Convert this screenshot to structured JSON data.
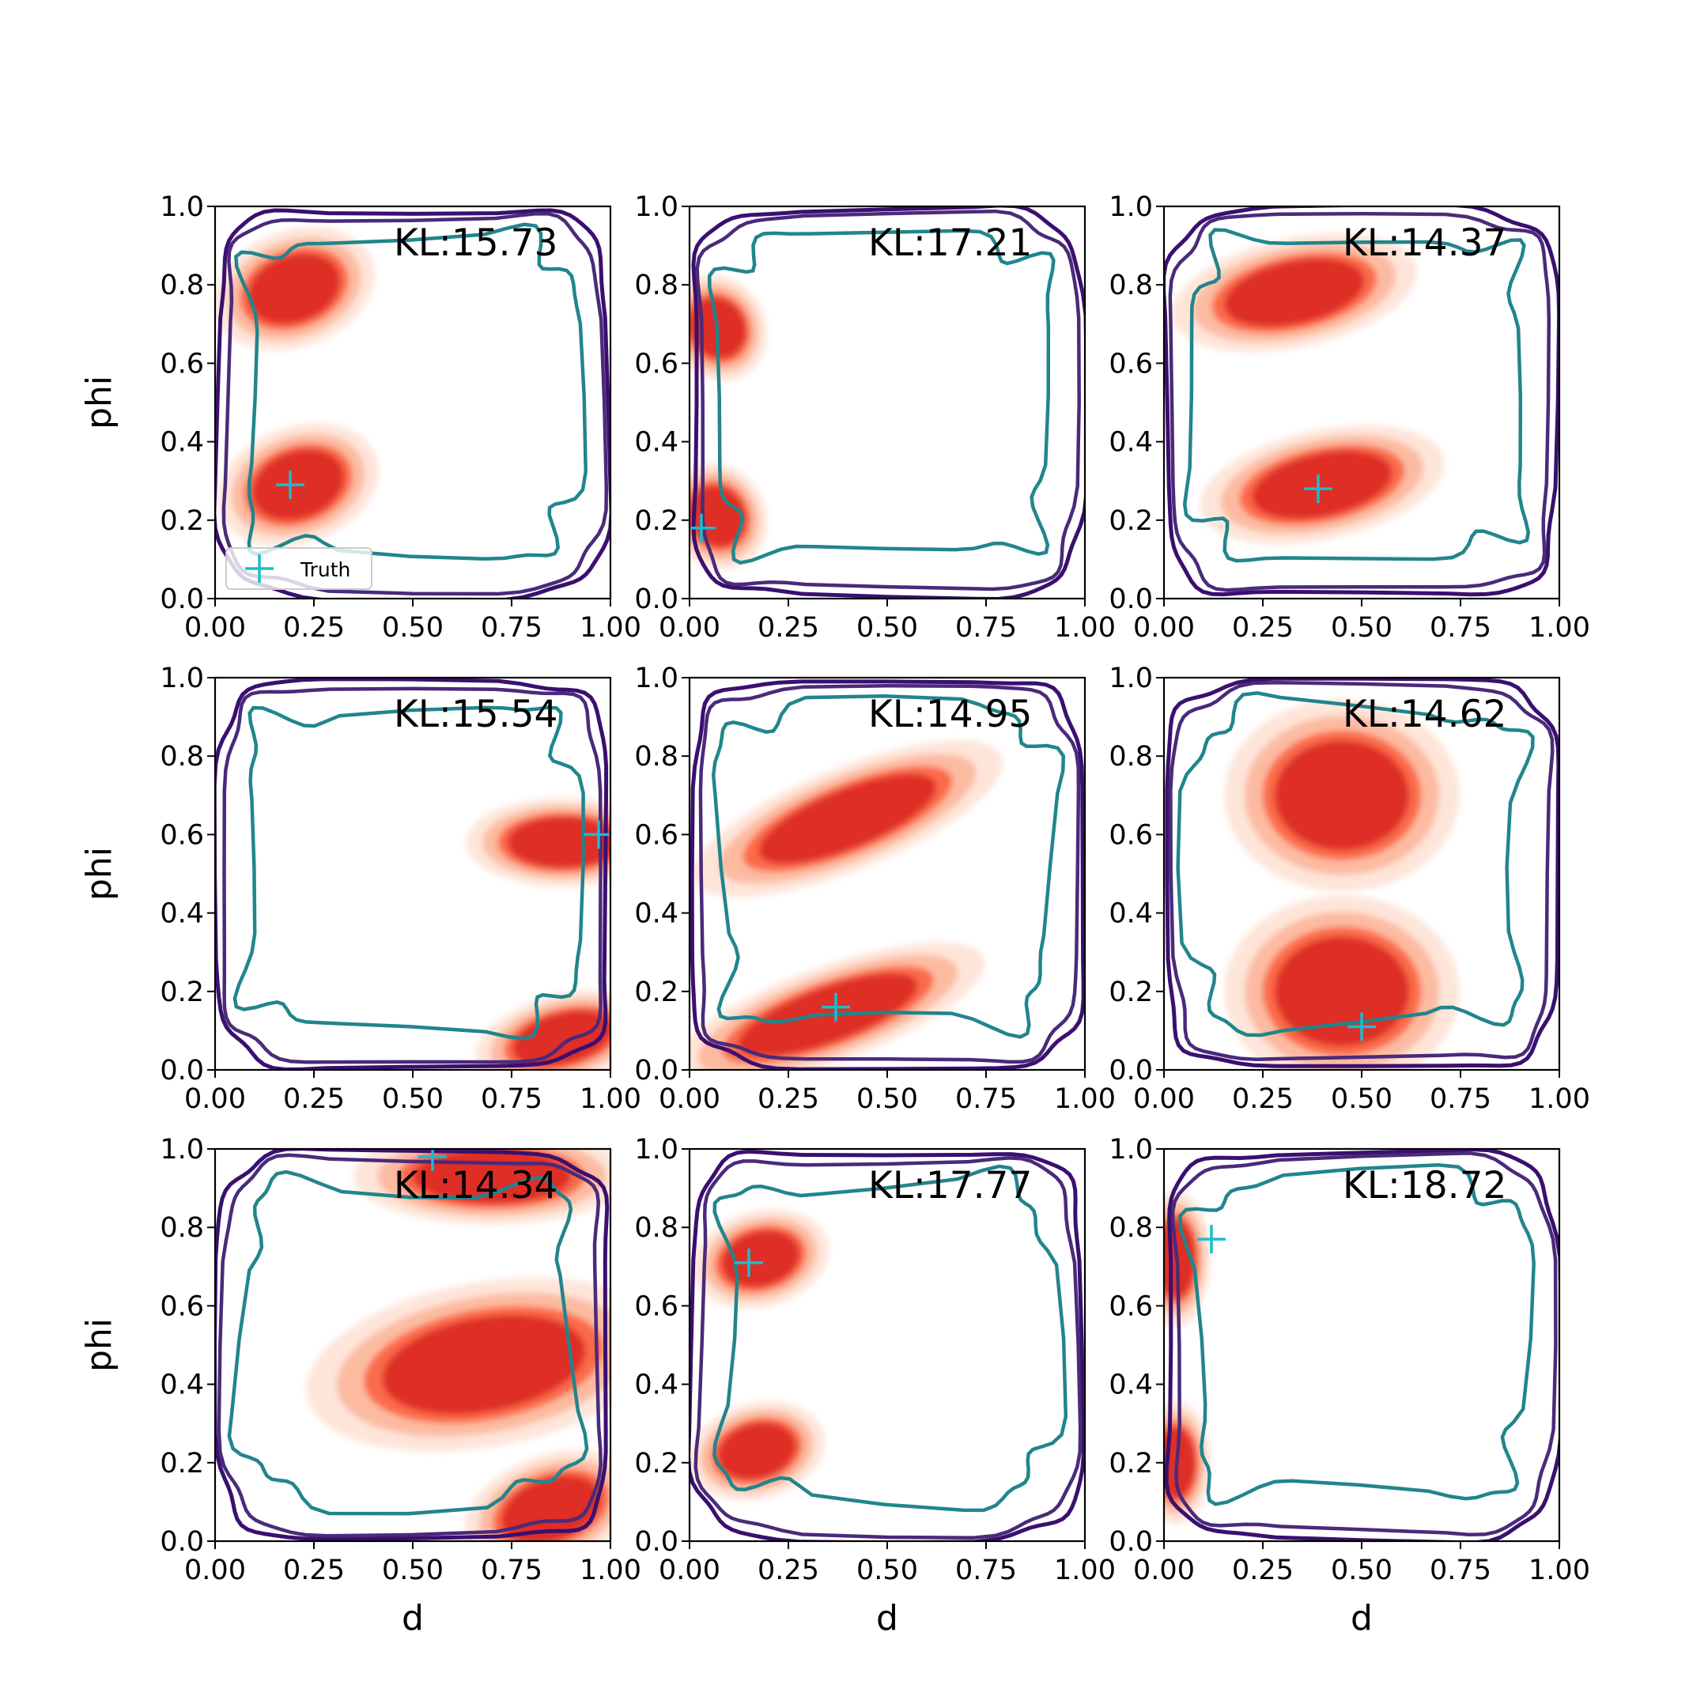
{
  "chart_data": {
    "type": "contour-grid",
    "grid": "3x3",
    "xlabel": "d",
    "ylabel": "phi",
    "xlim": [
      0,
      1
    ],
    "ylim": [
      0,
      1
    ],
    "xticks": [
      "0.00",
      "0.25",
      "0.50",
      "0.75",
      "1.00"
    ],
    "yticks": [
      "0.0",
      "0.2",
      "0.4",
      "0.6",
      "0.8",
      "1.0"
    ],
    "legend": {
      "label": "Truth",
      "placement": "lower-left",
      "panel": 0
    },
    "colors": {
      "truth": "#17becf",
      "filled": [
        "#fee5d9",
        "#fcbba1",
        "#fb6a4a",
        "#de2d26"
      ],
      "contour_outer": "#3b0f70",
      "contour_mid": "#4a2a7a",
      "contour_inner": "#21858c"
    },
    "panels": [
      {
        "kl": "KL:15.73",
        "truth": [
          0.19,
          0.29
        ],
        "blobs": [
          {
            "cx": 0.2,
            "cy": 0.79,
            "rx": 0.12,
            "ry": 0.085,
            "angle": 20
          },
          {
            "cx": 0.21,
            "cy": 0.29,
            "rx": 0.12,
            "ry": 0.085,
            "angle": 20
          }
        ]
      },
      {
        "kl": "KL:17.21",
        "truth": [
          0.03,
          0.18
        ],
        "blobs": [
          {
            "cx": 0.07,
            "cy": 0.69,
            "rx": 0.07,
            "ry": 0.08,
            "angle": 30
          },
          {
            "cx": 0.07,
            "cy": 0.21,
            "rx": 0.07,
            "ry": 0.08,
            "angle": 30
          }
        ]
      },
      {
        "kl": "KL:14.37",
        "truth": [
          0.39,
          0.28
        ],
        "blobs": [
          {
            "cx": 0.33,
            "cy": 0.78,
            "rx": 0.18,
            "ry": 0.08,
            "angle": 12
          },
          {
            "cx": 0.4,
            "cy": 0.29,
            "rx": 0.18,
            "ry": 0.08,
            "angle": 12
          }
        ]
      },
      {
        "kl": "KL:15.54",
        "truth": [
          0.97,
          0.6
        ],
        "blobs": [
          {
            "cx": 0.88,
            "cy": 0.58,
            "rx": 0.14,
            "ry": 0.065,
            "angle": 0
          },
          {
            "cx": 0.88,
            "cy": 0.08,
            "rx": 0.13,
            "ry": 0.065,
            "angle": 15
          }
        ]
      },
      {
        "kl": "KL:14.95",
        "truth": [
          0.37,
          0.16
        ],
        "blobs": [
          {
            "cx": 0.4,
            "cy": 0.64,
            "rx": 0.24,
            "ry": 0.075,
            "angle": 22
          },
          {
            "cx": 0.35,
            "cy": 0.14,
            "rx": 0.24,
            "ry": 0.07,
            "angle": 20
          }
        ]
      },
      {
        "kl": "KL:14.62",
        "truth": [
          0.5,
          0.11
        ],
        "blobs": [
          {
            "cx": 0.45,
            "cy": 0.7,
            "rx": 0.17,
            "ry": 0.14,
            "angle": 0
          },
          {
            "cx": 0.45,
            "cy": 0.2,
            "rx": 0.17,
            "ry": 0.14,
            "angle": 0
          }
        ]
      },
      {
        "kl": "KL:14.34",
        "truth": [
          0.55,
          0.98
        ],
        "blobs": [
          {
            "cx": 0.68,
            "cy": 0.45,
            "rx": 0.26,
            "ry": 0.12,
            "angle": 10
          },
          {
            "cx": 0.7,
            "cy": 0.93,
            "rx": 0.2,
            "ry": 0.07,
            "angle": 0
          },
          {
            "cx": 0.85,
            "cy": 0.08,
            "rx": 0.13,
            "ry": 0.08,
            "angle": 20
          }
        ]
      },
      {
        "kl": "KL:17.77",
        "truth": [
          0.15,
          0.71
        ],
        "blobs": [
          {
            "cx": 0.18,
            "cy": 0.72,
            "rx": 0.1,
            "ry": 0.07,
            "angle": 15
          },
          {
            "cx": 0.17,
            "cy": 0.23,
            "rx": 0.1,
            "ry": 0.07,
            "angle": 15
          }
        ]
      },
      {
        "kl": "KL:18.72",
        "truth": [
          0.12,
          0.77
        ],
        "blobs": [
          {
            "cx": 0.03,
            "cy": 0.72,
            "rx": 0.05,
            "ry": 0.1,
            "angle": 0
          },
          {
            "cx": 0.03,
            "cy": 0.2,
            "rx": 0.05,
            "ry": 0.09,
            "angle": 0
          }
        ]
      }
    ]
  }
}
